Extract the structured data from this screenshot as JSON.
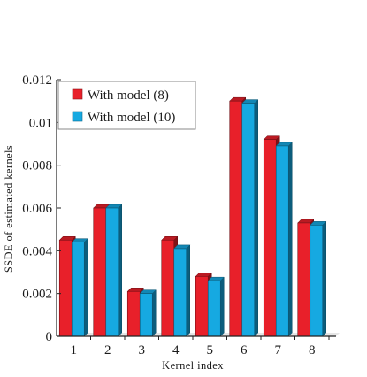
{
  "chart_data": {
    "type": "bar",
    "xlabel": "Kernel index",
    "ylabel": "SSDE of estimated kernels",
    "categories": [
      "1",
      "2",
      "3",
      "4",
      "5",
      "6",
      "7",
      "8"
    ],
    "ylim": [
      0,
      0.012
    ],
    "yticks": [
      "0",
      "0.002",
      "0.004",
      "0.006",
      "0.008",
      "0.01",
      "0.012"
    ],
    "grid": false,
    "legend_position": "top-left",
    "bar_style": "3d",
    "series": [
      {
        "name": "With model (8)",
        "color": "#e8202a",
        "values": [
          0.0045,
          0.006,
          0.0021,
          0.0045,
          0.0028,
          0.011,
          0.0092,
          0.0053
        ]
      },
      {
        "name": "With model (10)",
        "color": "#16a9e1",
        "values": [
          0.0044,
          0.006,
          0.002,
          0.0041,
          0.0026,
          0.0109,
          0.0089,
          0.0052
        ]
      }
    ]
  }
}
